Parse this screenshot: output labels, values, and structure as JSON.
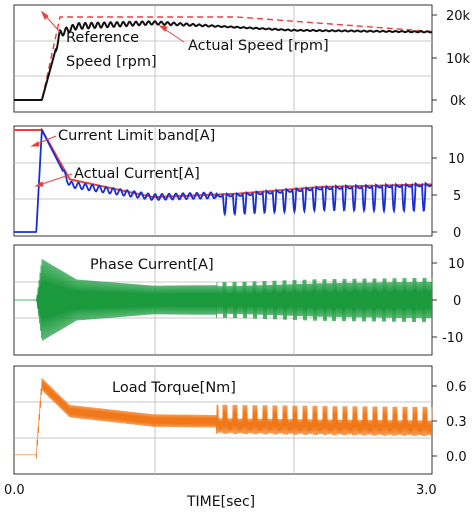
{
  "chart_data": [
    {
      "type": "line",
      "panel": "speed",
      "ylim": [
        0,
        20000
      ],
      "yticks": [
        "20k",
        "10k",
        "0k"
      ],
      "series": [
        {
          "name": "Reference Speed [rpm]",
          "color": "#e8413c",
          "style": "dashed",
          "x": [
            0,
            0.2,
            0.33,
            1.6,
            3.0
          ],
          "y": [
            0,
            0,
            20000,
            20000,
            16500
          ]
        },
        {
          "name": "Actual Speed [rpm]",
          "color": "#111111",
          "style": "solid",
          "x": [
            0,
            0.2,
            0.33,
            0.45,
            1.0,
            1.5,
            2.0,
            3.0
          ],
          "y": [
            0,
            0,
            16000,
            17800,
            18600,
            17700,
            16800,
            16400
          ],
          "ripple": 800
        }
      ],
      "annotations": [
        "Reference",
        "Speed [rpm]",
        "Actual Speed [rpm]"
      ]
    },
    {
      "type": "line",
      "panel": "current",
      "ylim": [
        0,
        12
      ],
      "yticks": [
        "10",
        "5",
        "0"
      ],
      "series": [
        {
          "name": "Current Limit band[A]",
          "color": "#e8413c",
          "x": [
            0,
            0.2,
            0.4,
            1.0,
            1.6,
            2.2,
            3.0
          ],
          "y": [
            12,
            12,
            6.2,
            4.1,
            4.5,
            5.3,
            5.6
          ]
        },
        {
          "name": "Actual Current[A]",
          "color": "#1a2fd0",
          "x": [
            0,
            0.16,
            0.2,
            0.4,
            1.0,
            1.6,
            2.2,
            3.0
          ],
          "y": [
            0,
            0,
            12,
            5.6,
            4.1,
            4.4,
            5.2,
            5.6
          ]
        }
      ],
      "annotations": [
        "Current Limit band[A]",
        "Actual Current[A]"
      ]
    },
    {
      "type": "line",
      "panel": "phase",
      "ylim": [
        -12,
        12
      ],
      "yticks": [
        "10",
        "0",
        "-10"
      ],
      "series": [
        {
          "name": "Phase Current[A]",
          "color": "#1a9a3c",
          "x": [
            0,
            0.16,
            0.2,
            0.45,
            1.0,
            1.6,
            2.2,
            3.0
          ],
          "y": [
            0,
            0,
            12,
            6,
            4.2,
            4.4,
            5.2,
            5.6
          ]
        }
      ],
      "annotations": [
        "Phase Current[A]"
      ]
    },
    {
      "type": "line",
      "panel": "torque",
      "ylim": [
        -0.05,
        0.72
      ],
      "yticks": [
        "0.6",
        "0.3",
        "0.0"
      ],
      "series": [
        {
          "name": "Load Torque[Nm]",
          "color": "#f07818",
          "x": [
            0,
            0.16,
            0.2,
            0.4,
            1.0,
            1.6,
            2.2,
            3.0
          ],
          "y": [
            0,
            0,
            0.68,
            0.42,
            0.33,
            0.32,
            0.31,
            0.3
          ]
        }
      ],
      "annotations": [
        "Load Torque[Nm]"
      ]
    }
  ],
  "x_axis": {
    "label": "TIME[sec]",
    "ticks": [
      "0.0",
      "3.0"
    ],
    "range": [
      0,
      3.0
    ]
  }
}
